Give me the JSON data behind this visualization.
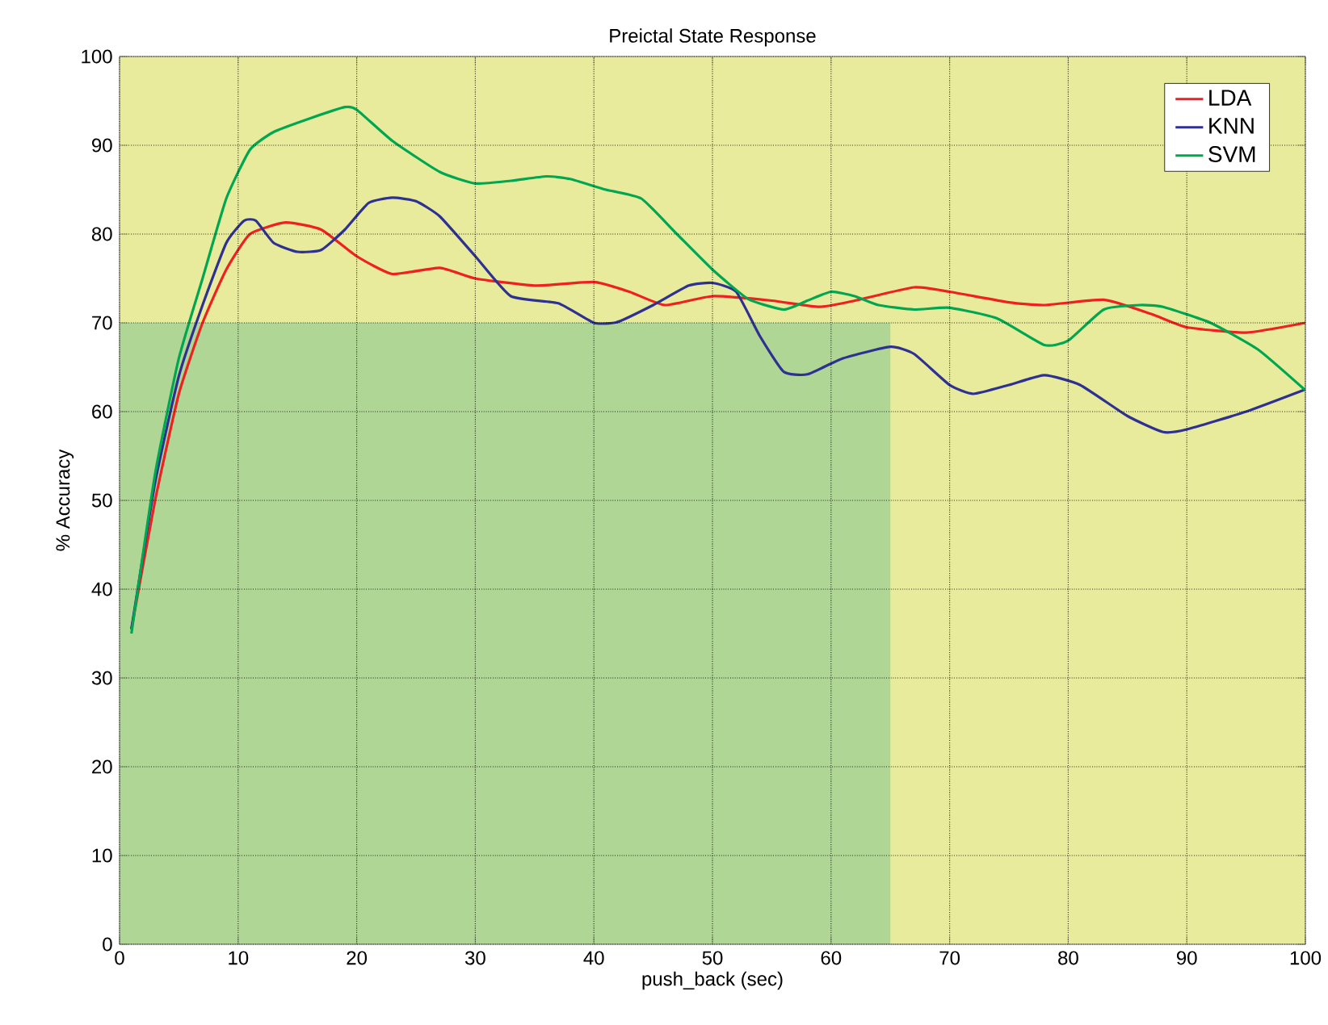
{
  "chart_data": {
    "type": "line",
    "title": "Preictal State Response",
    "xlabel": "push_back (sec)",
    "ylabel": "% Accuracy",
    "xlim": [
      0,
      100
    ],
    "ylim": [
      0,
      100
    ],
    "xticks": [
      0,
      10,
      20,
      30,
      40,
      50,
      60,
      70,
      80,
      90,
      100
    ],
    "yticks": [
      0,
      10,
      20,
      30,
      40,
      50,
      60,
      70,
      80,
      90,
      100
    ],
    "grid": true,
    "legend": "top right",
    "bands": [
      {
        "axis": "y",
        "from": 0,
        "to": 100,
        "color": "#e8eb9c"
      },
      {
        "axis": "y",
        "from": 0,
        "to": 70,
        "color": "#afd694"
      },
      {
        "axis": "x",
        "from": 65,
        "to": 100,
        "color": "#e8eb9c"
      }
    ],
    "series": [
      {
        "name": "LDA",
        "color": "#ee2020",
        "x": [
          1,
          3,
          5,
          7,
          9,
          11,
          14,
          17,
          20,
          23,
          27,
          30,
          35,
          40,
          43,
          46,
          50,
          55,
          59,
          62,
          67,
          70,
          75,
          78,
          83,
          87,
          90,
          95,
          100
        ],
        "values": [
          35.5,
          50,
          62,
          70,
          76,
          80,
          81.3,
          80.5,
          77.5,
          75.5,
          76.2,
          75,
          74.2,
          74.6,
          73.5,
          72,
          73,
          72.5,
          71.8,
          72.5,
          74,
          73.5,
          72.3,
          72,
          72.6,
          71,
          69.5,
          68.9,
          70
        ]
      },
      {
        "name": "KNN",
        "color": "#2e3192",
        "x": [
          1,
          3,
          5,
          7,
          9,
          10.5,
          11.5,
          13,
          15,
          17,
          19,
          21,
          23,
          25,
          27,
          30,
          33,
          37,
          40,
          42,
          45,
          48,
          50,
          52,
          54,
          56,
          58,
          61,
          65,
          67,
          70,
          72,
          75,
          78,
          81,
          85,
          88,
          90,
          95,
          100
        ],
        "values": [
          35.5,
          52,
          64,
          72,
          79,
          81.5,
          81.5,
          79,
          78,
          78.2,
          80.5,
          83.5,
          84.1,
          83.7,
          82,
          77.5,
          73,
          72.2,
          70,
          70.1,
          72,
          74.2,
          74.5,
          73.5,
          68.5,
          64.5,
          64.2,
          66,
          67.3,
          66.5,
          63,
          62,
          63,
          64.1,
          63,
          59.5,
          57.7,
          58,
          60,
          62.5
        ]
      },
      {
        "name": "SVM",
        "color": "#00a650",
        "x": [
          1,
          3,
          5,
          7,
          9,
          11,
          13,
          16,
          19,
          20,
          23,
          27,
          30,
          33,
          36,
          38,
          41,
          44,
          47,
          50,
          53,
          56,
          58,
          60,
          62,
          64,
          67,
          70,
          74,
          78,
          80,
          83,
          86,
          88,
          92,
          96,
          100
        ],
        "values": [
          35,
          53,
          66,
          75,
          84,
          89.5,
          91.5,
          93,
          94.3,
          94,
          90.5,
          87,
          85.7,
          86,
          86.5,
          86.2,
          85,
          84,
          80,
          76,
          72.7,
          71.5,
          72.5,
          73.5,
          73,
          72,
          71.5,
          71.7,
          70.5,
          67.5,
          68,
          71.5,
          72,
          71.8,
          70,
          67,
          62.4
        ]
      }
    ]
  }
}
